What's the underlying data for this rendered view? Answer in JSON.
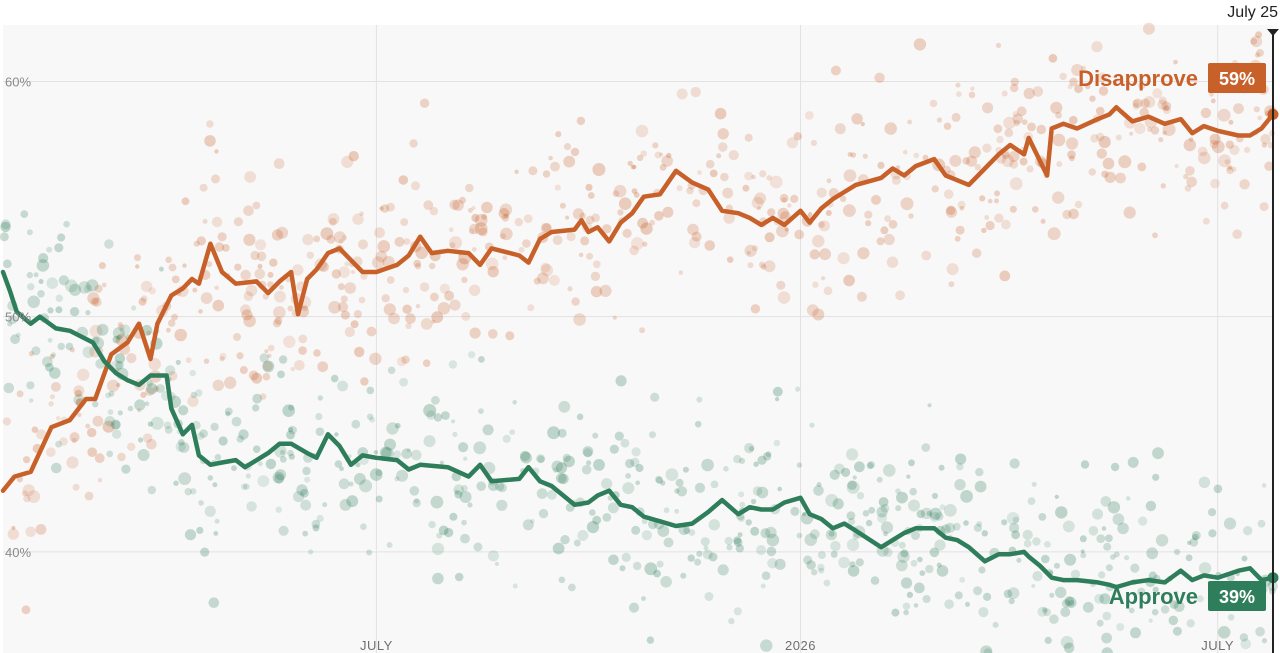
{
  "chart_data": {
    "type": "line",
    "title": "",
    "xlabel": "",
    "ylabel": "",
    "ylim": [
      35.7,
      62.4
    ],
    "grid": true,
    "y_ticks": [
      {
        "value": 60,
        "label": "60%"
      },
      {
        "value": 50,
        "label": "50%"
      },
      {
        "value": 40,
        "label": "40%"
      }
    ],
    "x_range": [
      "2025-01-20",
      "2026-07-25"
    ],
    "x_ticks": [
      {
        "date": "2025-07-01",
        "label": "JULY"
      },
      {
        "date": "2026-01-01",
        "label": "2026"
      },
      {
        "date": "2026-07-01",
        "label": "JULY"
      }
    ],
    "current_date": {
      "date": "2026-07-25",
      "label": "July 25"
    },
    "colors": {
      "disapprove": "#c8602a",
      "approve": "#2e7d5b",
      "grid": "#e2e2e2",
      "plot_bg": "#f8f8f8"
    },
    "series": [
      {
        "name": "Disapprove",
        "color": "#c8602a",
        "current_label": "59%",
        "points": [
          [
            "2025-01-20",
            42.6
          ],
          [
            "2025-01-25",
            43.2
          ],
          [
            "2025-02-01",
            43.4
          ],
          [
            "2025-02-10",
            45.3
          ],
          [
            "2025-02-18",
            45.6
          ],
          [
            "2025-02-25",
            46.5
          ],
          [
            "2025-03-01",
            46.5
          ],
          [
            "2025-03-08",
            48.4
          ],
          [
            "2025-03-15",
            48.9
          ],
          [
            "2025-03-20",
            49.7
          ],
          [
            "2025-03-25",
            48.2
          ],
          [
            "2025-03-28",
            49.7
          ],
          [
            "2025-04-03",
            50.9
          ],
          [
            "2025-04-08",
            51.2
          ],
          [
            "2025-04-12",
            51.6
          ],
          [
            "2025-04-15",
            51.4
          ],
          [
            "2025-04-20",
            53.1
          ],
          [
            "2025-04-25",
            51.9
          ],
          [
            "2025-05-01",
            51.4
          ],
          [
            "2025-05-10",
            51.5
          ],
          [
            "2025-05-15",
            51.0
          ],
          [
            "2025-05-20",
            51.5
          ],
          [
            "2025-05-25",
            51.9
          ],
          [
            "2025-05-28",
            50.1
          ],
          [
            "2025-06-01",
            51.6
          ],
          [
            "2025-06-05",
            52.0
          ],
          [
            "2025-06-10",
            52.7
          ],
          [
            "2025-06-15",
            52.9
          ],
          [
            "2025-06-20",
            52.4
          ],
          [
            "2025-06-25",
            51.9
          ],
          [
            "2025-07-01",
            51.9
          ],
          [
            "2025-07-10",
            52.2
          ],
          [
            "2025-07-15",
            52.6
          ],
          [
            "2025-07-20",
            53.4
          ],
          [
            "2025-07-25",
            52.7
          ],
          [
            "2025-08-01",
            52.8
          ],
          [
            "2025-08-10",
            52.7
          ],
          [
            "2025-08-15",
            52.2
          ],
          [
            "2025-08-20",
            52.9
          ],
          [
            "2025-09-01",
            52.6
          ],
          [
            "2025-09-05",
            52.3
          ],
          [
            "2025-09-10",
            53.3
          ],
          [
            "2025-09-15",
            53.6
          ],
          [
            "2025-09-25",
            53.7
          ],
          [
            "2025-09-28",
            54.1
          ],
          [
            "2025-10-01",
            53.6
          ],
          [
            "2025-10-05",
            53.8
          ],
          [
            "2025-10-10",
            53.2
          ],
          [
            "2025-10-15",
            54.0
          ],
          [
            "2025-10-20",
            54.4
          ],
          [
            "2025-10-25",
            55.1
          ],
          [
            "2025-11-01",
            55.2
          ],
          [
            "2025-11-08",
            56.2
          ],
          [
            "2025-11-15",
            55.7
          ],
          [
            "2025-11-22",
            55.4
          ],
          [
            "2025-11-28",
            54.5
          ],
          [
            "2025-12-05",
            54.4
          ],
          [
            "2025-12-10",
            54.2
          ],
          [
            "2025-12-15",
            53.9
          ],
          [
            "2025-12-20",
            54.2
          ],
          [
            "2025-12-25",
            53.9
          ],
          [
            "2026-01-01",
            54.5
          ],
          [
            "2026-01-05",
            54.0
          ],
          [
            "2026-01-10",
            54.6
          ],
          [
            "2026-01-15",
            55.0
          ],
          [
            "2026-01-20",
            55.3
          ],
          [
            "2026-01-25",
            55.6
          ],
          [
            "2026-02-05",
            55.9
          ],
          [
            "2026-02-10",
            56.3
          ],
          [
            "2026-02-15",
            56.0
          ],
          [
            "2026-02-20",
            56.4
          ],
          [
            "2026-02-28",
            56.7
          ],
          [
            "2026-03-05",
            56.0
          ],
          [
            "2026-03-10",
            55.8
          ],
          [
            "2026-03-15",
            55.6
          ],
          [
            "2026-03-22",
            56.3
          ],
          [
            "2026-03-28",
            56.9
          ],
          [
            "2026-04-02",
            57.3
          ],
          [
            "2026-04-08",
            56.9
          ],
          [
            "2026-04-10",
            57.6
          ],
          [
            "2026-04-15",
            56.6
          ],
          [
            "2026-04-18",
            56.0
          ],
          [
            "2026-04-20",
            58.0
          ],
          [
            "2026-04-25",
            58.2
          ],
          [
            "2026-05-01",
            58.0
          ],
          [
            "2026-05-10",
            58.4
          ],
          [
            "2026-05-15",
            58.6
          ],
          [
            "2026-05-18",
            58.9
          ],
          [
            "2026-05-25",
            58.3
          ],
          [
            "2026-06-01",
            58.5
          ],
          [
            "2026-06-08",
            58.2
          ],
          [
            "2026-06-15",
            58.4
          ],
          [
            "2026-06-20",
            57.8
          ],
          [
            "2026-06-25",
            58.1
          ],
          [
            "2026-07-01",
            57.9
          ],
          [
            "2026-07-10",
            57.7
          ],
          [
            "2026-07-15",
            57.7
          ],
          [
            "2026-07-20",
            58.0
          ],
          [
            "2026-07-25",
            58.6
          ]
        ]
      },
      {
        "name": "Approve",
        "color": "#2e7d5b",
        "current_label": "39%",
        "points": [
          [
            "2025-01-20",
            51.9
          ],
          [
            "2025-01-23",
            51.1
          ],
          [
            "2025-01-26",
            50.2
          ],
          [
            "2025-02-01",
            49.7
          ],
          [
            "2025-02-05",
            50.0
          ],
          [
            "2025-02-12",
            49.5
          ],
          [
            "2025-02-18",
            49.4
          ],
          [
            "2025-02-28",
            48.9
          ],
          [
            "2025-03-05",
            48.1
          ],
          [
            "2025-03-10",
            47.6
          ],
          [
            "2025-03-15",
            47.3
          ],
          [
            "2025-03-20",
            47.1
          ],
          [
            "2025-03-25",
            47.5
          ],
          [
            "2025-04-01",
            47.5
          ],
          [
            "2025-04-03",
            46.1
          ],
          [
            "2025-04-08",
            45.0
          ],
          [
            "2025-04-12",
            45.4
          ],
          [
            "2025-04-15",
            44.1
          ],
          [
            "2025-04-20",
            43.7
          ],
          [
            "2025-04-25",
            43.8
          ],
          [
            "2025-05-01",
            43.9
          ],
          [
            "2025-05-05",
            43.6
          ],
          [
            "2025-05-15",
            44.2
          ],
          [
            "2025-05-20",
            44.6
          ],
          [
            "2025-05-25",
            44.6
          ],
          [
            "2025-06-01",
            44.2
          ],
          [
            "2025-06-05",
            44.0
          ],
          [
            "2025-06-10",
            45.0
          ],
          [
            "2025-06-15",
            44.5
          ],
          [
            "2025-06-20",
            43.7
          ],
          [
            "2025-06-25",
            44.1
          ],
          [
            "2025-07-01",
            44.0
          ],
          [
            "2025-07-10",
            43.9
          ],
          [
            "2025-07-15",
            43.5
          ],
          [
            "2025-07-20",
            43.7
          ],
          [
            "2025-08-01",
            43.6
          ],
          [
            "2025-08-10",
            43.2
          ],
          [
            "2025-08-15",
            43.7
          ],
          [
            "2025-08-20",
            43.0
          ],
          [
            "2025-09-01",
            43.1
          ],
          [
            "2025-09-05",
            43.6
          ],
          [
            "2025-09-10",
            43.0
          ],
          [
            "2025-09-15",
            42.8
          ],
          [
            "2025-09-25",
            42.0
          ],
          [
            "2025-10-01",
            42.1
          ],
          [
            "2025-10-05",
            42.4
          ],
          [
            "2025-10-10",
            42.6
          ],
          [
            "2025-10-15",
            42.0
          ],
          [
            "2025-10-20",
            41.9
          ],
          [
            "2025-10-25",
            41.5
          ],
          [
            "2025-11-01",
            41.3
          ],
          [
            "2025-11-08",
            41.1
          ],
          [
            "2025-11-15",
            41.2
          ],
          [
            "2025-11-22",
            41.7
          ],
          [
            "2025-11-28",
            42.2
          ],
          [
            "2025-12-05",
            41.6
          ],
          [
            "2025-12-10",
            41.9
          ],
          [
            "2025-12-15",
            41.8
          ],
          [
            "2025-12-20",
            41.8
          ],
          [
            "2025-12-25",
            42.1
          ],
          [
            "2026-01-01",
            42.3
          ],
          [
            "2026-01-05",
            41.6
          ],
          [
            "2026-01-10",
            41.4
          ],
          [
            "2026-01-15",
            41.0
          ],
          [
            "2026-01-20",
            41.2
          ],
          [
            "2026-01-25",
            40.9
          ],
          [
            "2026-02-05",
            40.2
          ],
          [
            "2026-02-10",
            40.5
          ],
          [
            "2026-02-15",
            40.8
          ],
          [
            "2026-02-20",
            41.0
          ],
          [
            "2026-02-28",
            41.0
          ],
          [
            "2026-03-05",
            40.6
          ],
          [
            "2026-03-10",
            40.5
          ],
          [
            "2026-03-15",
            40.2
          ],
          [
            "2026-03-22",
            39.6
          ],
          [
            "2026-03-28",
            39.9
          ],
          [
            "2026-04-02",
            39.9
          ],
          [
            "2026-04-08",
            40.0
          ],
          [
            "2026-04-10",
            39.8
          ],
          [
            "2026-04-15",
            39.4
          ],
          [
            "2026-04-20",
            38.9
          ],
          [
            "2026-04-25",
            38.8
          ],
          [
            "2026-05-01",
            38.8
          ],
          [
            "2026-05-10",
            38.7
          ],
          [
            "2026-05-15",
            38.6
          ],
          [
            "2026-05-18",
            38.5
          ],
          [
            "2026-05-25",
            38.7
          ],
          [
            "2026-06-01",
            38.8
          ],
          [
            "2026-06-08",
            38.7
          ],
          [
            "2026-06-15",
            39.2
          ],
          [
            "2026-06-20",
            38.8
          ],
          [
            "2026-06-25",
            39.0
          ],
          [
            "2026-07-01",
            38.9
          ],
          [
            "2026-07-10",
            39.2
          ],
          [
            "2026-07-15",
            39.3
          ],
          [
            "2026-07-20",
            38.8
          ],
          [
            "2026-07-25",
            38.9
          ]
        ]
      }
    ]
  }
}
